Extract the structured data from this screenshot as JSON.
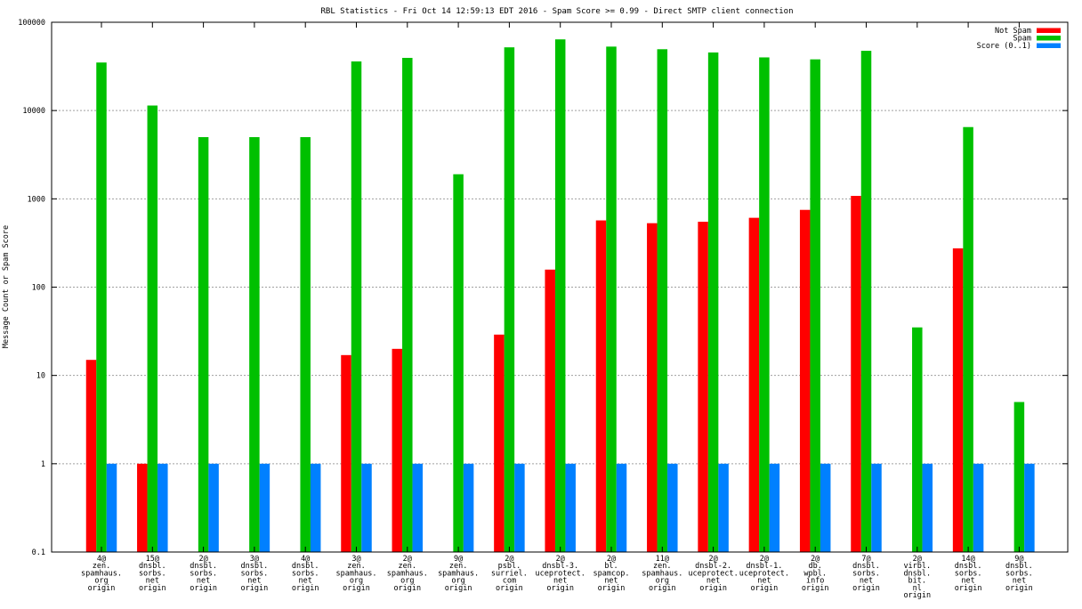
{
  "chart_data": {
    "type": "bar",
    "title": "RBL Statistics - Fri Oct 14 12:59:13 EDT 2016 - Spam Score >= 0.99 - Direct SMTP client connection",
    "ylabel": "Message Count or Spam Score",
    "xlabel": "",
    "yscale": "log",
    "ylim": [
      0.1,
      100000
    ],
    "yticks": [
      "0.1",
      "1",
      "10",
      "100",
      "1000",
      "10000",
      "100000"
    ],
    "grid": true,
    "legend_position": "top-right",
    "categories": [
      [
        "4@",
        "zen.",
        "spamhaus.",
        "org",
        "origin"
      ],
      [
        "15@",
        "dnsbl.",
        "sorbs.",
        "net",
        "origin"
      ],
      [
        "2@",
        "dnsbl.",
        "sorbs.",
        "net",
        "origin"
      ],
      [
        "3@",
        "dnsbl.",
        "sorbs.",
        "net",
        "origin"
      ],
      [
        "4@",
        "dnsbl.",
        "sorbs.",
        "net",
        "origin"
      ],
      [
        "3@",
        "zen.",
        "spamhaus.",
        "org",
        "origin"
      ],
      [
        "2@",
        "zen.",
        "spamhaus.",
        "org",
        "origin"
      ],
      [
        "9@",
        "zen.",
        "spamhaus.",
        "org",
        "origin"
      ],
      [
        "2@",
        "psbl.",
        "surriel.",
        "com",
        "origin"
      ],
      [
        "2@",
        "dnsbl-3.",
        "uceprotect.",
        "net",
        "origin"
      ],
      [
        "2@",
        "bl.",
        "spamcop.",
        "net",
        "origin"
      ],
      [
        "11@",
        "zen.",
        "spamhaus.",
        "org",
        "origin"
      ],
      [
        "2@",
        "dnsbl-2.",
        "uceprotect.",
        "net",
        "origin"
      ],
      [
        "2@",
        "dnsbl-1.",
        "uceprotect.",
        "net",
        "origin"
      ],
      [
        "2@",
        "db.",
        "wpbl.",
        "info",
        "origin"
      ],
      [
        "7@",
        "dnsbl.",
        "sorbs.",
        "net",
        "origin"
      ],
      [
        "2@",
        "virbl.",
        "dnsbl.",
        "bit.",
        "nl",
        "origin"
      ],
      [
        "14@",
        "dnsbl.",
        "sorbs.",
        "net",
        "origin"
      ],
      [
        "9@",
        "dnsbl.",
        "sorbs.",
        "net",
        "origin"
      ]
    ],
    "series": [
      {
        "name": "Not Spam",
        "color": "#ff0000",
        "values": [
          15,
          1,
          null,
          null,
          null,
          17,
          20,
          null,
          29,
          158,
          570,
          530,
          550,
          610,
          750,
          1080,
          null,
          275,
          null
        ]
      },
      {
        "name": "Spam",
        "color": "#00c000",
        "values": [
          35000,
          11400,
          5000,
          5000,
          5000,
          36000,
          39500,
          1900,
          52000,
          64000,
          53000,
          49500,
          45500,
          40000,
          38000,
          47500,
          35,
          6500,
          5
        ]
      },
      {
        "name": "Score (0..1)",
        "color": "#0080ff",
        "values": [
          1,
          1,
          1,
          1,
          1,
          1,
          1,
          1,
          1,
          1,
          1,
          1,
          1,
          1,
          1,
          1,
          1,
          1,
          1
        ]
      }
    ]
  }
}
